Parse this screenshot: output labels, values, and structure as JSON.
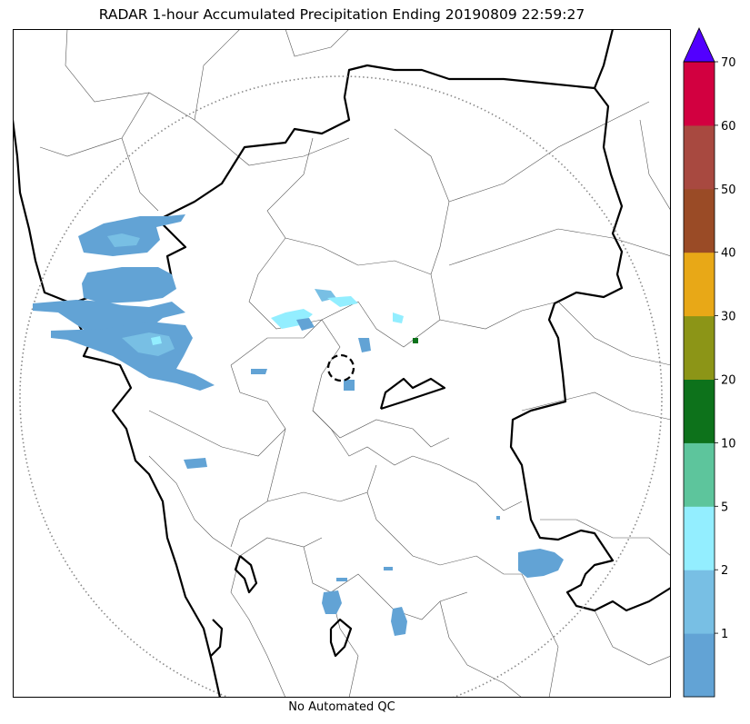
{
  "title": "RADAR 1-hour Accumulated Precipitation Ending 20190809 22:59:27",
  "footer_note": "No Automated QC",
  "colorbar": {
    "tick_labels": [
      "1",
      "2",
      "5",
      "10",
      "20",
      "30",
      "40",
      "50",
      "60",
      "70"
    ],
    "bins": [
      {
        "color": "#62a3d5"
      },
      {
        "color": "#78bfe4"
      },
      {
        "color": "#93eeff"
      },
      {
        "color": "#5dc59c"
      },
      {
        "color": "#0d721b"
      },
      {
        "color": "#8c9517"
      },
      {
        "color": "#e8a817"
      },
      {
        "color": "#9a4b26"
      },
      {
        "color": "#a84940"
      },
      {
        "color": "#d20040"
      }
    ],
    "over_color": "#5200ff"
  },
  "map": {
    "range_ring": "dotted",
    "radar_site_marker": "dashed-circle"
  }
}
